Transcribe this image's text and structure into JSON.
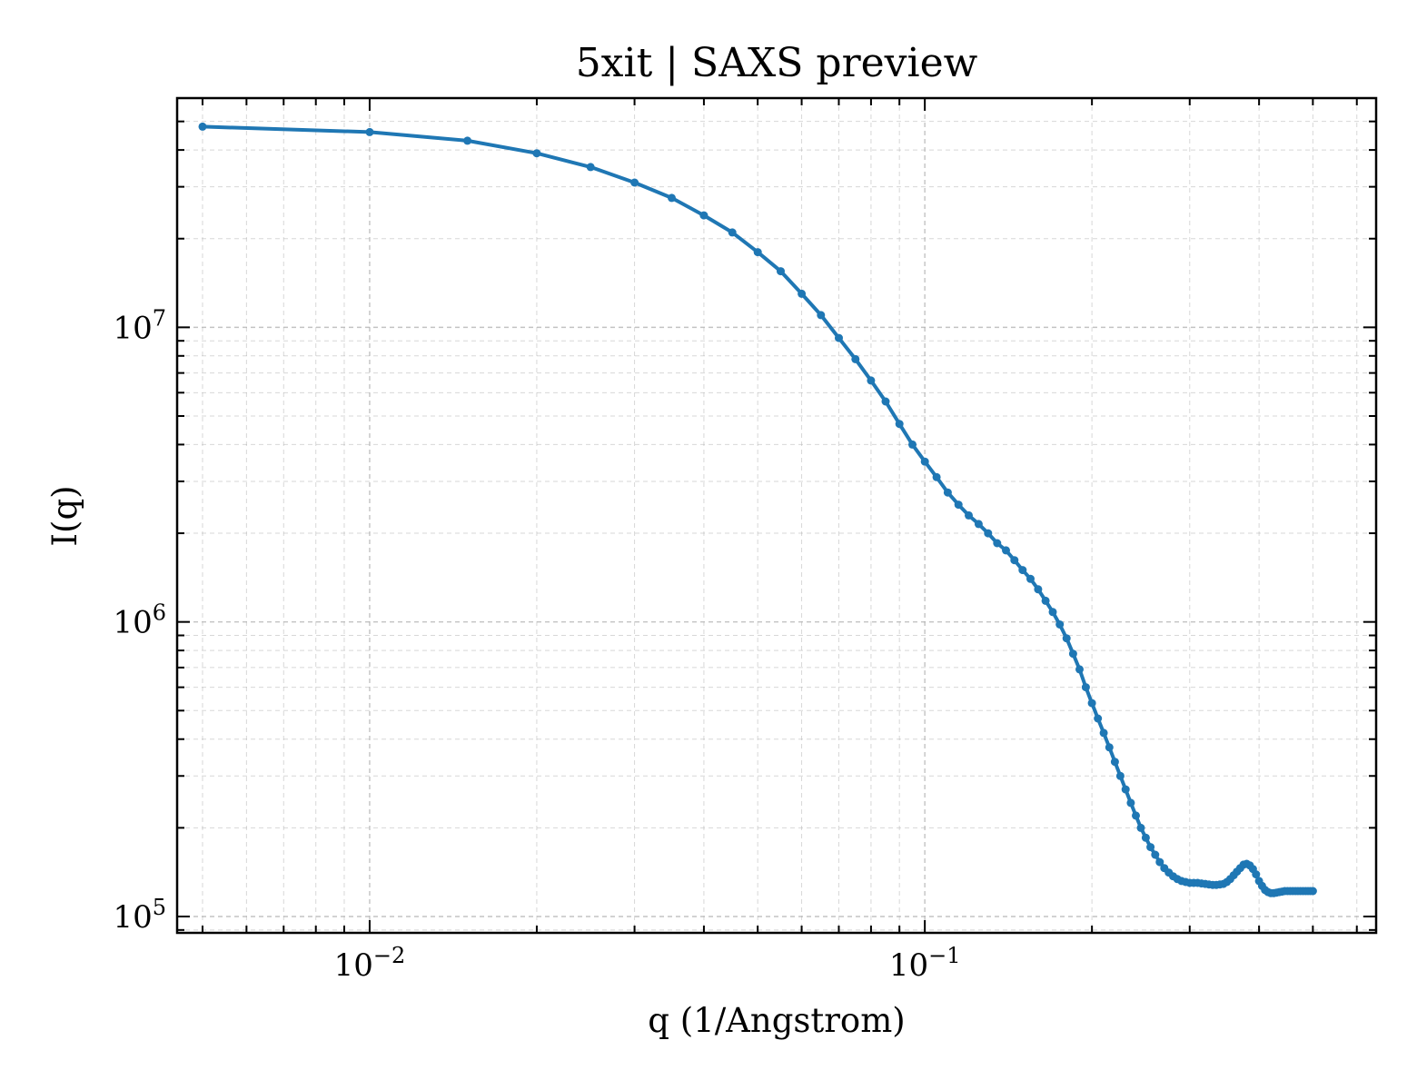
{
  "chart_data": {
    "type": "line",
    "title": "5xit | SAXS preview",
    "xlabel": "q (1/Angstrom)",
    "ylabel": "I(q)",
    "xscale": "log",
    "yscale": "log",
    "xlim": [
      0.0045,
      0.65
    ],
    "ylim": [
      88000,
      60000000
    ],
    "grid": true,
    "x_ticks": [
      {
        "value": 0.01,
        "base": "10",
        "exp": "−2"
      },
      {
        "value": 0.1,
        "base": "10",
        "exp": "−1"
      }
    ],
    "y_ticks": [
      {
        "value": 100000,
        "base": "10",
        "exp": "5"
      },
      {
        "value": 1000000,
        "base": "10",
        "exp": "6"
      },
      {
        "value": 10000000,
        "base": "10",
        "exp": "7"
      }
    ],
    "series": [
      {
        "color": "#1f77b4",
        "x": [
          0.005,
          0.01,
          0.015,
          0.02,
          0.025,
          0.03,
          0.035,
          0.04,
          0.045,
          0.05,
          0.055,
          0.06,
          0.065,
          0.07,
          0.075,
          0.08,
          0.085,
          0.09,
          0.095,
          0.1,
          0.105,
          0.11,
          0.115,
          0.12,
          0.125,
          0.13,
          0.135,
          0.14,
          0.145,
          0.15,
          0.155,
          0.16,
          0.165,
          0.17,
          0.175,
          0.18,
          0.185,
          0.19,
          0.195,
          0.2,
          0.205,
          0.21,
          0.215,
          0.22,
          0.225,
          0.23,
          0.235,
          0.24,
          0.245,
          0.25,
          0.255,
          0.26,
          0.265,
          0.27,
          0.275,
          0.28,
          0.285,
          0.29,
          0.295,
          0.3,
          0.305,
          0.31,
          0.315,
          0.32,
          0.325,
          0.33,
          0.335,
          0.34,
          0.345,
          0.35,
          0.355,
          0.36,
          0.365,
          0.37,
          0.375,
          0.38,
          0.385,
          0.39,
          0.395,
          0.4,
          0.405,
          0.41,
          0.415,
          0.42,
          0.425,
          0.43,
          0.435,
          0.44,
          0.445,
          0.45,
          0.455,
          0.46,
          0.465,
          0.47,
          0.475,
          0.48,
          0.485,
          0.49,
          0.495,
          0.5
        ],
        "y": [
          48000000,
          46000000,
          43000000,
          39000000,
          35000000,
          31000000,
          27500000,
          24000000,
          21000000,
          18000000,
          15500000,
          13000000,
          11000000,
          9200000,
          7800000,
          6600000,
          5600000,
          4700000,
          4000000,
          3500000,
          3100000,
          2750000,
          2500000,
          2300000,
          2150000,
          2000000,
          1850000,
          1750000,
          1620000,
          1500000,
          1400000,
          1290000,
          1180000,
          1080000,
          980000,
          880000,
          780000,
          690000,
          600000,
          530000,
          470000,
          420000,
          375000,
          335000,
          300000,
          270000,
          243000,
          220000,
          200000,
          185000,
          172000,
          162000,
          153000,
          146000,
          141000,
          137000,
          134000,
          132000,
          131000,
          130000,
          130000,
          130000,
          129500,
          129000,
          128500,
          128000,
          128000,
          128500,
          129000,
          131000,
          134000,
          138000,
          142000,
          146000,
          150000,
          151000,
          149000,
          145000,
          139000,
          132000,
          127000,
          123000,
          121000,
          120000,
          120000,
          120500,
          121000,
          121500,
          122000,
          122000,
          122000,
          122000,
          122000,
          122000,
          122000,
          122000,
          122000,
          122000,
          122000,
          122000
        ]
      }
    ]
  }
}
